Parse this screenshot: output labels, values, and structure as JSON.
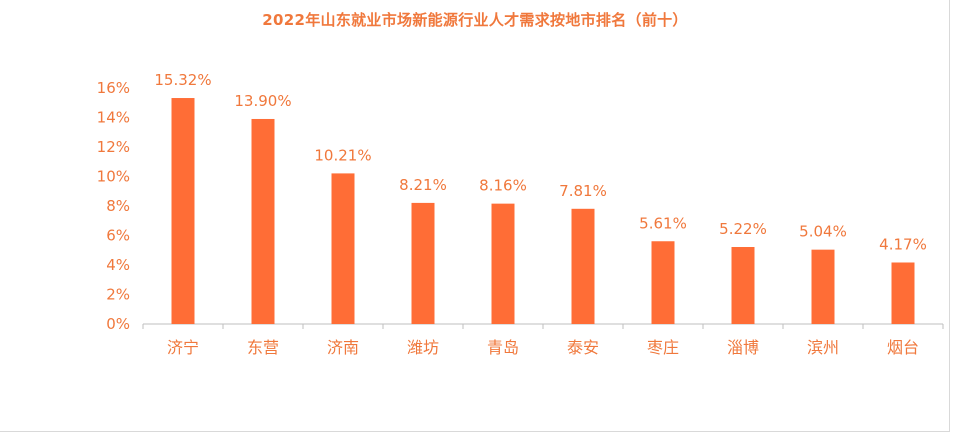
{
  "chart_data": {
    "type": "bar",
    "title": "2022年山东就业市场新能源行业人才需求按地市排名（前十）",
    "categories": [
      "济宁",
      "东营",
      "济南",
      "潍坊",
      "青岛",
      "泰安",
      "枣庄",
      "淄博",
      "滨州",
      "烟台"
    ],
    "values": [
      15.32,
      13.9,
      10.21,
      8.21,
      8.16,
      7.81,
      5.61,
      5.22,
      5.04,
      4.17
    ],
    "data_labels": [
      "15.32%",
      "13.90%",
      "10.21%",
      "8.21%",
      "8.16%",
      "7.81%",
      "5.61%",
      "5.22%",
      "5.04%",
      "4.17%"
    ],
    "y_ticks": [
      0,
      2,
      4,
      6,
      8,
      10,
      12,
      14,
      16
    ],
    "y_tick_labels": [
      "0%",
      "2%",
      "4%",
      "6%",
      "8%",
      "10%",
      "12%",
      "14%",
      "16%"
    ],
    "ylim": [
      0,
      16
    ],
    "xlabel": "",
    "ylabel": "",
    "grid": false,
    "legend": "none",
    "bar_color": "#ff6d36",
    "text_color": "#f0783c",
    "axis_color": "#bfbfbf"
  }
}
